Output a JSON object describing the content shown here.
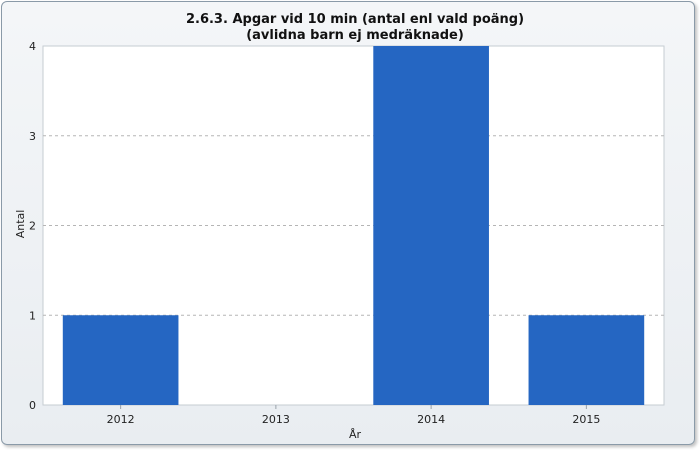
{
  "chart_data": {
    "type": "bar",
    "title": "2.6.3. Apgar vid 10 min (antal enl vald poäng)",
    "subtitle": "(avlidna barn ej medräknade)",
    "xlabel": "År",
    "ylabel": "Antal",
    "categories": [
      "2012",
      "2013",
      "2014",
      "2015"
    ],
    "values": [
      1,
      0,
      4,
      1
    ],
    "ylim": [
      0,
      4
    ],
    "yticks": [
      0,
      1,
      2,
      3,
      4
    ],
    "grid": true,
    "bar_color": "#2566c2"
  }
}
